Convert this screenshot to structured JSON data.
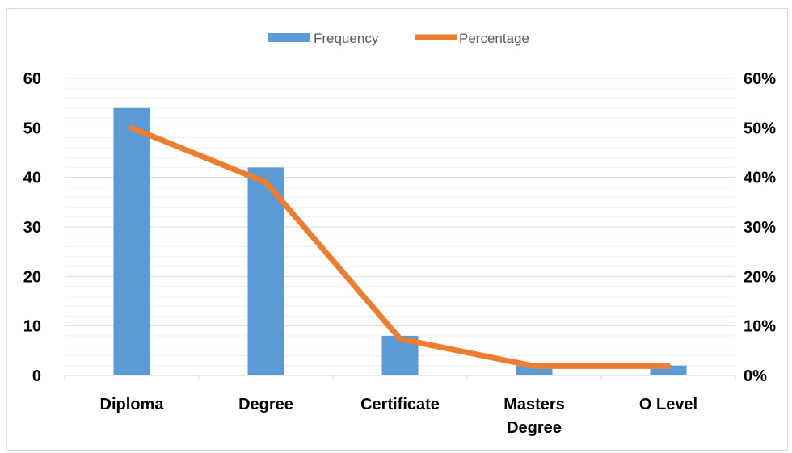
{
  "chart_data": {
    "type": "bar",
    "categories": [
      [
        "Diploma"
      ],
      [
        "Degree"
      ],
      [
        "Certificate"
      ],
      [
        "Masters",
        "Degree"
      ],
      [
        "O Level"
      ]
    ],
    "series": [
      {
        "name": "Frequency",
        "kind": "bar",
        "axis": "left",
        "color": "#5b9bd5",
        "values": [
          54,
          42,
          8,
          2,
          2
        ]
      },
      {
        "name": "Percentage",
        "kind": "line",
        "axis": "right",
        "color": "#ed7d31",
        "values": [
          50,
          39,
          7.4,
          1.9,
          1.9
        ]
      }
    ],
    "y_left": {
      "ylim": [
        0,
        60
      ],
      "ticks": [
        "0",
        "10",
        "20",
        "30",
        "40",
        "50",
        "60"
      ]
    },
    "y_right": {
      "ylim": [
        0,
        60
      ],
      "ticks": [
        "0%",
        "10%",
        "20%",
        "30%",
        "40%",
        "50%",
        "60%"
      ]
    },
    "minor_gridlines_per_major": 5,
    "grid": true,
    "legend_position": "top"
  }
}
